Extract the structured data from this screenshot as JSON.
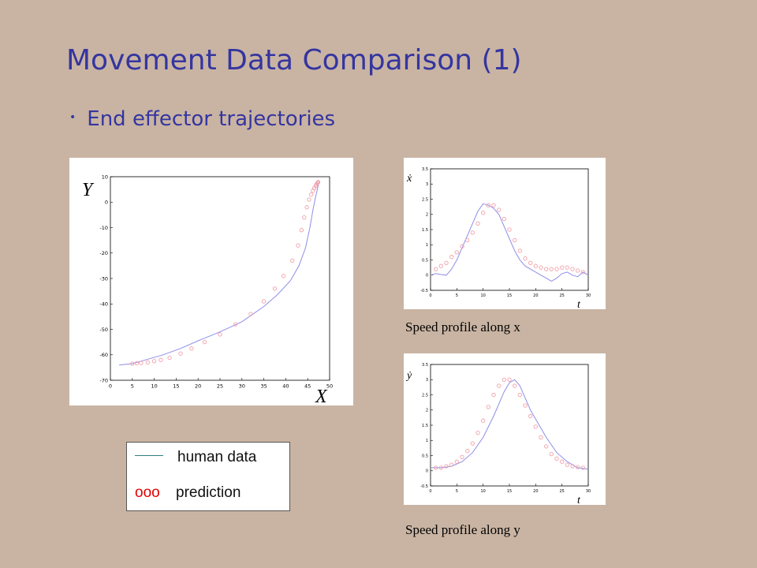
{
  "slide": {
    "title": "Movement Data Comparison (1)",
    "bullet": "End effector trajectories",
    "bullet_marker": "•"
  },
  "legend": {
    "human_label": "human data",
    "prediction_marker": "ooo",
    "prediction_label": "prediction",
    "human_color": "#2f7f7f",
    "prediction_color": "#e00000"
  },
  "captions": {
    "speed_x": "Speed profile along x",
    "speed_y": "Speed profile along y"
  },
  "colors": {
    "background": "#c9b4a3",
    "title": "#3535a0",
    "human_line": "#8e8ee8",
    "prediction_marker": "#f0a0a8"
  },
  "chart_data": [
    {
      "type": "scatter",
      "name": "trajectory",
      "xlabel": "X",
      "ylabel": "Y",
      "xlim": [
        0,
        50
      ],
      "ylim": [
        -70,
        10
      ],
      "xticks": [
        0,
        5,
        10,
        15,
        20,
        25,
        30,
        35,
        40,
        45,
        50
      ],
      "yticks": [
        10,
        0,
        -10,
        -20,
        -30,
        -40,
        -50,
        -60,
        -70
      ],
      "series": [
        {
          "kind": "line",
          "x": [
            2,
            5,
            8,
            12,
            16,
            20,
            25,
            30,
            35,
            38,
            41,
            43,
            44.5,
            45.5,
            46.2,
            46.8,
            47.2,
            47.5
          ],
          "y": [
            -64,
            -63.5,
            -62,
            -60,
            -57.5,
            -54.5,
            -51,
            -47,
            -41,
            -36.5,
            -31,
            -25,
            -18,
            -10,
            -3,
            2,
            5,
            7.5
          ]
        },
        {
          "kind": "markers",
          "x": [
            5,
            6,
            7,
            8.5,
            10,
            11.5,
            13.5,
            16,
            18.5,
            21.5,
            25,
            28.5,
            32,
            35,
            37.5,
            39.5,
            41.5,
            42.8,
            43.6,
            44.2,
            44.8,
            45.3,
            45.8,
            46.2,
            46.5,
            46.8,
            47,
            47.2,
            47.3,
            47.4
          ],
          "y": [
            -63.5,
            -63.3,
            -63.2,
            -63,
            -62.5,
            -62,
            -61.2,
            -59.5,
            -57.5,
            -55,
            -52,
            -48,
            -44,
            -39,
            -34,
            -29,
            -23,
            -17,
            -11,
            -6,
            -2,
            1,
            3,
            4.5,
            5.5,
            6.3,
            7,
            7.4,
            7.7,
            7.9
          ]
        }
      ]
    },
    {
      "type": "scatter",
      "name": "speed_x",
      "xlabel": "t",
      "ylabel": "ẋ",
      "xlim": [
        0,
        30
      ],
      "ylim": [
        -0.5,
        3.5
      ],
      "xticks": [
        0,
        5,
        10,
        15,
        20,
        25,
        30
      ],
      "yticks": [
        3.5,
        3,
        2.5,
        2,
        1.5,
        1,
        0.5,
        0,
        -0.5
      ],
      "series": [
        {
          "kind": "line",
          "x": [
            0,
            1,
            2,
            3,
            4,
            5,
            6,
            7,
            8,
            9,
            10,
            11,
            12,
            13,
            14,
            15,
            16,
            17,
            18,
            19,
            20,
            21,
            22,
            23,
            24,
            25,
            26,
            27,
            28,
            29,
            30
          ],
          "y": [
            0,
            0.05,
            0.02,
            0.0,
            0.2,
            0.5,
            0.9,
            1.3,
            1.7,
            2.1,
            2.35,
            2.3,
            2.2,
            2.0,
            1.6,
            1.2,
            0.8,
            0.5,
            0.3,
            0.2,
            0.1,
            0.0,
            -0.1,
            -0.2,
            -0.1,
            0.05,
            0.1,
            0.0,
            -0.05,
            0.1,
            0.0
          ]
        },
        {
          "kind": "markers",
          "x": [
            1,
            2,
            3,
            4,
            5,
            6,
            7,
            8,
            9,
            10,
            11,
            12,
            13,
            14,
            15,
            16,
            17,
            18,
            19,
            20,
            21,
            22,
            23,
            24,
            25,
            26,
            27,
            28,
            29
          ],
          "y": [
            0.2,
            0.3,
            0.4,
            0.6,
            0.75,
            0.95,
            1.15,
            1.4,
            1.7,
            2.05,
            2.3,
            2.3,
            2.15,
            1.85,
            1.5,
            1.15,
            0.8,
            0.55,
            0.4,
            0.3,
            0.25,
            0.2,
            0.2,
            0.2,
            0.25,
            0.25,
            0.2,
            0.15,
            0.1
          ]
        }
      ]
    },
    {
      "type": "scatter",
      "name": "speed_y",
      "xlabel": "t",
      "ylabel": "ẏ",
      "xlim": [
        0,
        30
      ],
      "ylim": [
        -0.5,
        3.5
      ],
      "xticks": [
        0,
        5,
        10,
        15,
        20,
        25,
        30
      ],
      "yticks": [
        3.5,
        3,
        2.5,
        2,
        1.5,
        1,
        0.5,
        0,
        -0.5
      ],
      "series": [
        {
          "kind": "line",
          "x": [
            0,
            2,
            4,
            6,
            8,
            10,
            12,
            14,
            15,
            16,
            17,
            18,
            19,
            20,
            22,
            24,
            26,
            28,
            30
          ],
          "y": [
            0.1,
            0.1,
            0.15,
            0.3,
            0.6,
            1.1,
            1.8,
            2.6,
            2.9,
            3.0,
            2.8,
            2.4,
            2.0,
            1.7,
            1.1,
            0.6,
            0.3,
            0.1,
            0.05
          ]
        },
        {
          "kind": "markers",
          "x": [
            1,
            2,
            3,
            4,
            5,
            6,
            7,
            8,
            9,
            10,
            11,
            12,
            13,
            14,
            15,
            16,
            17,
            18,
            19,
            20,
            21,
            22,
            23,
            24,
            25,
            26,
            27,
            28,
            29
          ],
          "y": [
            0.1,
            0.1,
            0.15,
            0.2,
            0.3,
            0.45,
            0.65,
            0.9,
            1.25,
            1.65,
            2.1,
            2.5,
            2.8,
            3.0,
            3.0,
            2.8,
            2.5,
            2.15,
            1.8,
            1.45,
            1.1,
            0.8,
            0.55,
            0.4,
            0.3,
            0.2,
            0.15,
            0.12,
            0.1
          ]
        }
      ]
    }
  ]
}
